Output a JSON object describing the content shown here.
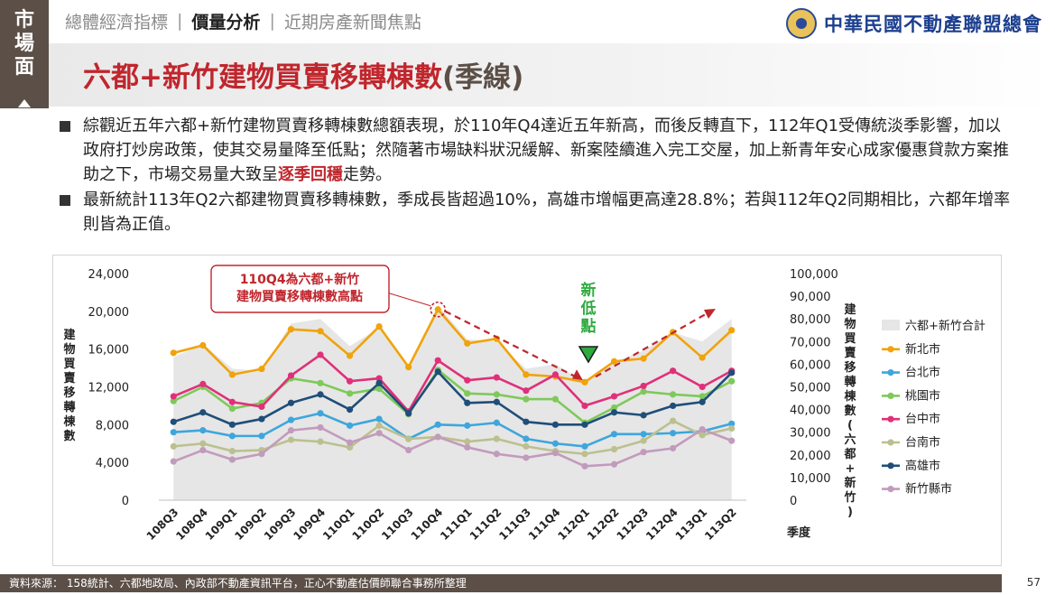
{
  "side_tab": {
    "label": "市場面"
  },
  "nav": {
    "tabs": [
      "總體經濟指標",
      "價量分析",
      "近期房產新聞焦點"
    ],
    "active_index": 1
  },
  "logo": {
    "name": "中華民國不動產聯盟總會"
  },
  "title": {
    "main": "六都+新竹建物買賣移轉棟數",
    "suffix": "(季線)"
  },
  "bullets": [
    {
      "text_before": "綜觀近五年六都+新竹建物買賣移轉棟數總額表現，於110年Q4達近五年新高，而後反轉直下，112年Q1受傳統淡季影響，加以政府打炒房政策，使其交易量降至低點；然隨著市場缺料狀況緩解、新案陸續進入完工交屋，加上新青年安心成家優惠貸款方案推助之下，市場交易量大致呈",
      "highlight": "逐季回穩",
      "text_after": "走勢。"
    },
    {
      "text_before": "最新統計113年Q2六都建物買賣移轉棟數，季成長皆超過10%，高雄市增幅更高達28.8%；若與112年Q2同期相比，六都年增率則皆為正值。",
      "highlight": "",
      "text_after": ""
    }
  ],
  "chart_data": {
    "type": "line",
    "categories": [
      "108Q3",
      "108Q4",
      "109Q1",
      "109Q2",
      "109Q3",
      "109Q4",
      "110Q1",
      "110Q2",
      "110Q3",
      "110Q4",
      "111Q1",
      "111Q2",
      "111Q3",
      "111Q4",
      "112Q1",
      "112Q2",
      "112Q3",
      "112Q4",
      "113Q1",
      "113Q2"
    ],
    "ylabel_left": "建物買賣移轉棟數",
    "ylabel_right": "建物買賣移轉棟數(六都+新竹)",
    "xlabel": "季度",
    "y_left": {
      "range": [
        0,
        24000
      ],
      "ticks": [
        "0",
        "4,000",
        "8,000",
        "12,000",
        "16,000",
        "20,000",
        "24,000"
      ]
    },
    "y_right": {
      "range": [
        0,
        100000
      ],
      "ticks": [
        "0",
        "10,000",
        "20,000",
        "30,000",
        "40,000",
        "50,000",
        "60,000",
        "70,000",
        "80,000",
        "90,000",
        "100,000"
      ]
    },
    "area_series": {
      "name": "六都+新竹合計",
      "color": "#e6e6e6",
      "values": [
        63000,
        69000,
        58000,
        57000,
        78000,
        80000,
        68000,
        76000,
        58000,
        86000,
        71000,
        70000,
        58000,
        60000,
        52000,
        61000,
        66000,
        74000,
        70000,
        80000
      ]
    },
    "series": [
      {
        "name": "新北市",
        "color": "#f0a30a",
        "values": [
          15600,
          16400,
          13300,
          13900,
          18100,
          17900,
          15300,
          18400,
          14100,
          20200,
          16600,
          17100,
          13300,
          13100,
          12500,
          14700,
          15000,
          17800,
          15100,
          18000
        ]
      },
      {
        "name": "台北市",
        "color": "#3ea6dc",
        "values": [
          7200,
          7400,
          6800,
          6800,
          8500,
          9200,
          7900,
          8600,
          6500,
          8000,
          7900,
          8200,
          6500,
          6000,
          5700,
          7000,
          7000,
          7100,
          7300,
          8100
        ]
      },
      {
        "name": "桃園市",
        "color": "#7ec95a",
        "values": [
          10500,
          12000,
          9700,
          10300,
          12900,
          12400,
          11300,
          11800,
          9100,
          13800,
          11300,
          11200,
          10700,
          10700,
          8200,
          9800,
          11500,
          11200,
          11000,
          12600
        ]
      },
      {
        "name": "台中市",
        "color": "#e0307a",
        "values": [
          11000,
          12300,
          10400,
          9900,
          13200,
          15400,
          12600,
          12900,
          9400,
          14800,
          12700,
          13000,
          11600,
          13300,
          10000,
          11000,
          12100,
          13700,
          12000,
          13700
        ]
      },
      {
        "name": "台南市",
        "color": "#bcc08f",
        "values": [
          5700,
          6000,
          5200,
          5300,
          6400,
          6200,
          5600,
          7900,
          6500,
          6700,
          6200,
          6500,
          5700,
          5200,
          4900,
          5400,
          6300,
          8400,
          6900,
          7600
        ]
      },
      {
        "name": "高雄市",
        "color": "#1f4e79",
        "values": [
          8300,
          9300,
          8000,
          8600,
          10300,
          11200,
          9600,
          12400,
          9200,
          13600,
          10300,
          10400,
          8300,
          8000,
          8000,
          9300,
          9000,
          10000,
          10400,
          13500
        ]
      },
      {
        "name": "新竹縣市",
        "color": "#c29bbc",
        "values": [
          4100,
          5300,
          4300,
          4900,
          7400,
          7700,
          6100,
          7100,
          5300,
          6700,
          5600,
          4900,
          4500,
          5000,
          3600,
          3800,
          5100,
          5500,
          7500,
          6300
        ]
      }
    ],
    "annotations": {
      "peak_label": "110Q4為六都+新竹\n建物買賣移轉棟數高點",
      "low_label": "新低點"
    },
    "legend_position": "right"
  },
  "footer": {
    "source": "資料來源： 158統計、六都地政局、內政部不動產資訊平台，正心不動產估價師聯合事務所整理",
    "page": "57"
  }
}
